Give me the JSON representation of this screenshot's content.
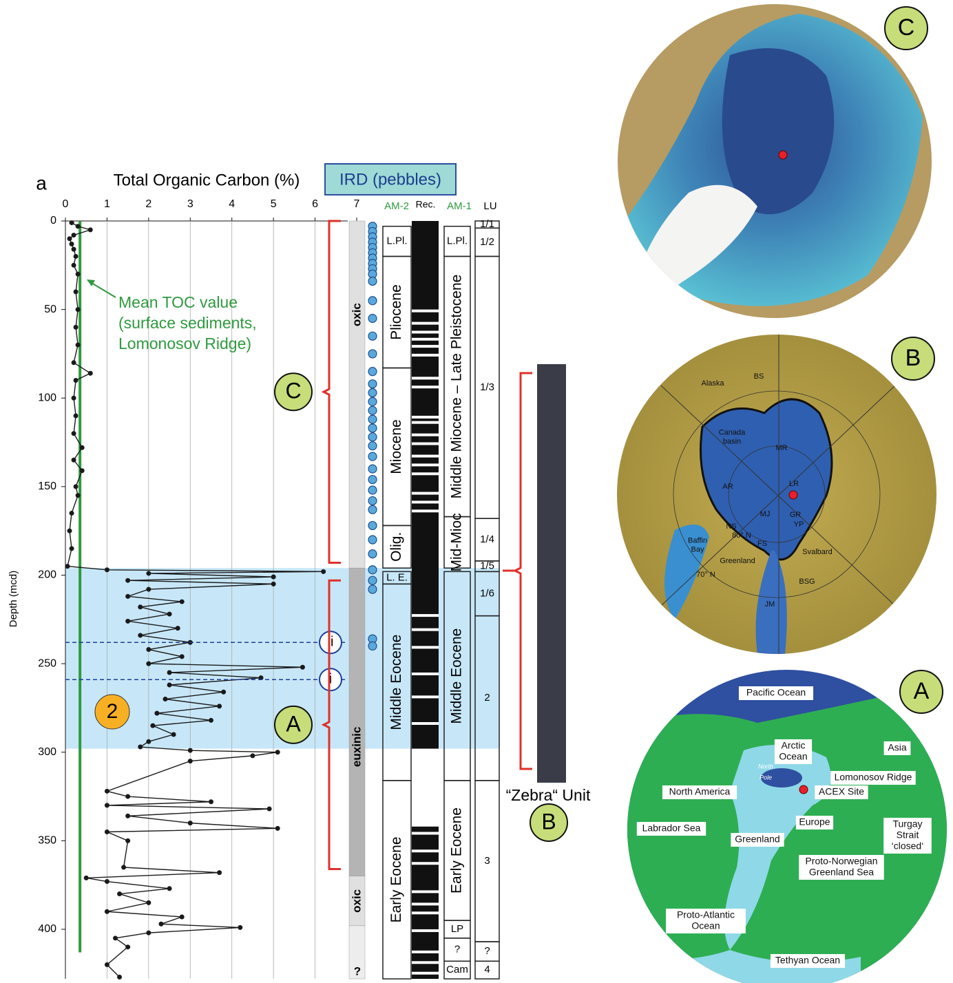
{
  "chart_data": {
    "type": "line",
    "panel_label": "a",
    "title": "Total Organic Carbon (%)",
    "ird_label": "IRD (pebbles)",
    "y_label": "Depth (mcd)",
    "color": "#1a1a1a",
    "xlim": [
      0,
      7
    ],
    "xticks": [
      0,
      1,
      2,
      3,
      4,
      5,
      6,
      7
    ],
    "ylim": [
      0,
      428
    ],
    "yticks": [
      0,
      50,
      100,
      150,
      200,
      250,
      300,
      350,
      400
    ],
    "grid": true,
    "depth": [
      1,
      3,
      5,
      8,
      10,
      13,
      16,
      20,
      25,
      30,
      40,
      50,
      60,
      70,
      80,
      86,
      90,
      100,
      110,
      120,
      128,
      135,
      141,
      150,
      155,
      165,
      175,
      185,
      195,
      197,
      198,
      199,
      201,
      203,
      205,
      208,
      212,
      215,
      218,
      222,
      226,
      230,
      234,
      238,
      242,
      246,
      250,
      252,
      255,
      258,
      262,
      266,
      270,
      274,
      278,
      282,
      285,
      290,
      294,
      297,
      299,
      300,
      302,
      305,
      322,
      325,
      328,
      330,
      332,
      336,
      340,
      343,
      345,
      350,
      365,
      368,
      371,
      373,
      377,
      380,
      385,
      390,
      393,
      397,
      399,
      402,
      405,
      410,
      420,
      427
    ],
    "values": [
      0.15,
      0.3,
      0.6,
      0.2,
      0.1,
      0.15,
      0.2,
      0.25,
      0.2,
      0.3,
      0.25,
      0.3,
      0.25,
      0.3,
      0.2,
      0.6,
      0.25,
      0.2,
      0.25,
      0.2,
      0.4,
      0.2,
      0.4,
      0.25,
      0.3,
      0.15,
      0.1,
      0.15,
      0.05,
      1.0,
      6.2,
      2.0,
      5.0,
      1.5,
      5.0,
      2.0,
      1.5,
      2.8,
      1.8,
      2.5,
      1.5,
      2.7,
      1.8,
      3.0,
      2.0,
      2.8,
      2.0,
      5.7,
      2.5,
      4.7,
      2.5,
      3.8,
      2.4,
      3.7,
      2.2,
      3.5,
      2.1,
      2.6,
      2.0,
      1.8,
      3.0,
      5.1,
      4.5,
      3.0,
      1.0,
      1.5,
      3.5,
      1.0,
      4.9,
      1.5,
      3.0,
      5.1,
      1.0,
      1.5,
      1.4,
      3.7,
      0.5,
      1.0,
      2.5,
      1.3,
      2.0,
      1.0,
      2.8,
      2.3,
      4.2,
      2.0,
      1.2,
      1.5,
      1.0,
      1.3
    ],
    "mean_toc": {
      "value": 0.35,
      "color": "#2e9a3e",
      "lines": [
        "Mean TOC value",
        "(surface sediments,",
        "Lomonosov Ridge)"
      ]
    },
    "euxinic_interval": [
      196,
      298
    ],
    "horizons": [
      {
        "label": "ii",
        "depth": 238
      },
      {
        "label": "i",
        "depth": 259
      }
    ],
    "marker_2": "2",
    "ird_depths": [
      3,
      6,
      9,
      12,
      15,
      18,
      21,
      24,
      27,
      30,
      34,
      45,
      55,
      65,
      75,
      85,
      92,
      97,
      102,
      107,
      112,
      117,
      122,
      127,
      133,
      140,
      146,
      152,
      158,
      163,
      172,
      180,
      188,
      197,
      203,
      208,
      236,
      240
    ],
    "redox": [
      {
        "label": "oxic",
        "top": 0,
        "bottom": 196
      },
      {
        "label": "euxinic",
        "top": 196,
        "bottom": 370
      },
      {
        "label": "oxic",
        "top": 370,
        "bottom": 398
      },
      {
        "label": "?",
        "top": 398,
        "bottom": 428
      }
    ],
    "column_titles": {
      "am2": "AM-2",
      "rec": "Rec.",
      "am1": "AM-1",
      "lu": "LU"
    },
    "am2": [
      {
        "label": "L.Pl.",
        "top": 3,
        "bottom": 20
      },
      {
        "label": "Pliocene",
        "top": 20,
        "bottom": 83
      },
      {
        "label": "Miocene",
        "top": 83,
        "bottom": 172
      },
      {
        "label": "Olig.",
        "top": 172,
        "bottom": 196
      },
      {
        "label": "L. E.",
        "top": 198,
        "bottom": 205
      },
      {
        "label": "Middle Eocene",
        "top": 205,
        "bottom": 316
      },
      {
        "label": "Early Eocene",
        "top": 316,
        "bottom": 428
      }
    ],
    "am1": [
      {
        "label": "L.Pl.",
        "top": 3,
        "bottom": 20
      },
      {
        "label": "Middle Miocene – Late Pleistocene",
        "top": 20,
        "bottom": 167
      },
      {
        "label": "Mid-Mioc",
        "top": 167,
        "bottom": 196
      },
      {
        "label": "Middle Eocene",
        "top": 198,
        "bottom": 316
      },
      {
        "label": "Early Eocene",
        "top": 316,
        "bottom": 395
      },
      {
        "label": "LP",
        "top": 395,
        "bottom": 405
      },
      {
        "label": "?",
        "top": 405,
        "bottom": 418
      },
      {
        "label": "Cam",
        "top": 418,
        "bottom": 428
      }
    ],
    "lu": [
      {
        "label": "1/1",
        "top": 0,
        "bottom": 4
      },
      {
        "label": "1/2",
        "top": 4,
        "bottom": 20
      },
      {
        "label": "1/3",
        "top": 20,
        "bottom": 168
      },
      {
        "label": "1/4",
        "top": 168,
        "bottom": 192
      },
      {
        "label": "1/5",
        "top": 192,
        "bottom": 198
      },
      {
        "label": "1/6",
        "top": 198,
        "bottom": 223
      },
      {
        "label": "2",
        "top": 223,
        "bottom": 316
      },
      {
        "label": "3",
        "top": 316,
        "bottom": 407
      },
      {
        "label": "?",
        "top": 407,
        "bottom": 418
      },
      {
        "label": "4",
        "top": 418,
        "bottom": 428
      }
    ],
    "brackets": [
      {
        "label": "C",
        "top": 0,
        "bottom": 193
      },
      {
        "label": "A",
        "top": 203,
        "bottom": 366
      }
    ],
    "core_label": "“Zebra“ Unit",
    "core_marker": "B"
  },
  "maps": [
    {
      "label": "C",
      "places": []
    },
    {
      "label": "B",
      "places": [
        {
          "lines": [
            "Alaska"
          ]
        },
        {
          "lines": [
            "BS"
          ]
        },
        {
          "lines": [
            "Canada",
            "basin"
          ]
        },
        {
          "lines": [
            "MR"
          ]
        },
        {
          "lines": [
            "AR"
          ]
        },
        {
          "lines": [
            "LR"
          ]
        },
        {
          "lines": [
            "MJ"
          ]
        },
        {
          "lines": [
            "GR"
          ]
        },
        {
          "lines": [
            "YP"
          ]
        },
        {
          "lines": [
            "NS"
          ]
        },
        {
          "lines": [
            "FS"
          ]
        },
        {
          "lines": [
            "80° N"
          ]
        },
        {
          "lines": [
            "Baffin",
            "Bay"
          ]
        },
        {
          "lines": [
            "Greenland"
          ]
        },
        {
          "lines": [
            "Svalbard"
          ]
        },
        {
          "lines": [
            "70° N"
          ]
        },
        {
          "lines": [
            "BSG"
          ]
        },
        {
          "lines": [
            "JM"
          ]
        }
      ]
    },
    {
      "label": "A",
      "places": [
        {
          "lines": [
            "Pacific Ocean"
          ]
        },
        {
          "lines": [
            "Arctic",
            "Ocean"
          ]
        },
        {
          "lines": [
            "Asia"
          ]
        },
        {
          "lines": [
            "Lomonosov Ridge"
          ]
        },
        {
          "lines": [
            "North America"
          ]
        },
        {
          "lines": [
            "ACEX Site"
          ]
        },
        {
          "lines": [
            "Europe"
          ]
        },
        {
          "lines": [
            "Labrador Sea"
          ]
        },
        {
          "lines": [
            "Greenland"
          ]
        },
        {
          "lines": [
            "Turgay",
            "Strait",
            "‘closed‘"
          ]
        },
        {
          "lines": [
            "Proto-Norwegian",
            "Greenland Sea"
          ]
        },
        {
          "lines": [
            "Proto-Atlantic",
            "Ocean"
          ]
        },
        {
          "lines": [
            "Tethyan Ocean"
          ]
        },
        {
          "lines": [
            "North",
            "Pole"
          ]
        }
      ]
    }
  ]
}
